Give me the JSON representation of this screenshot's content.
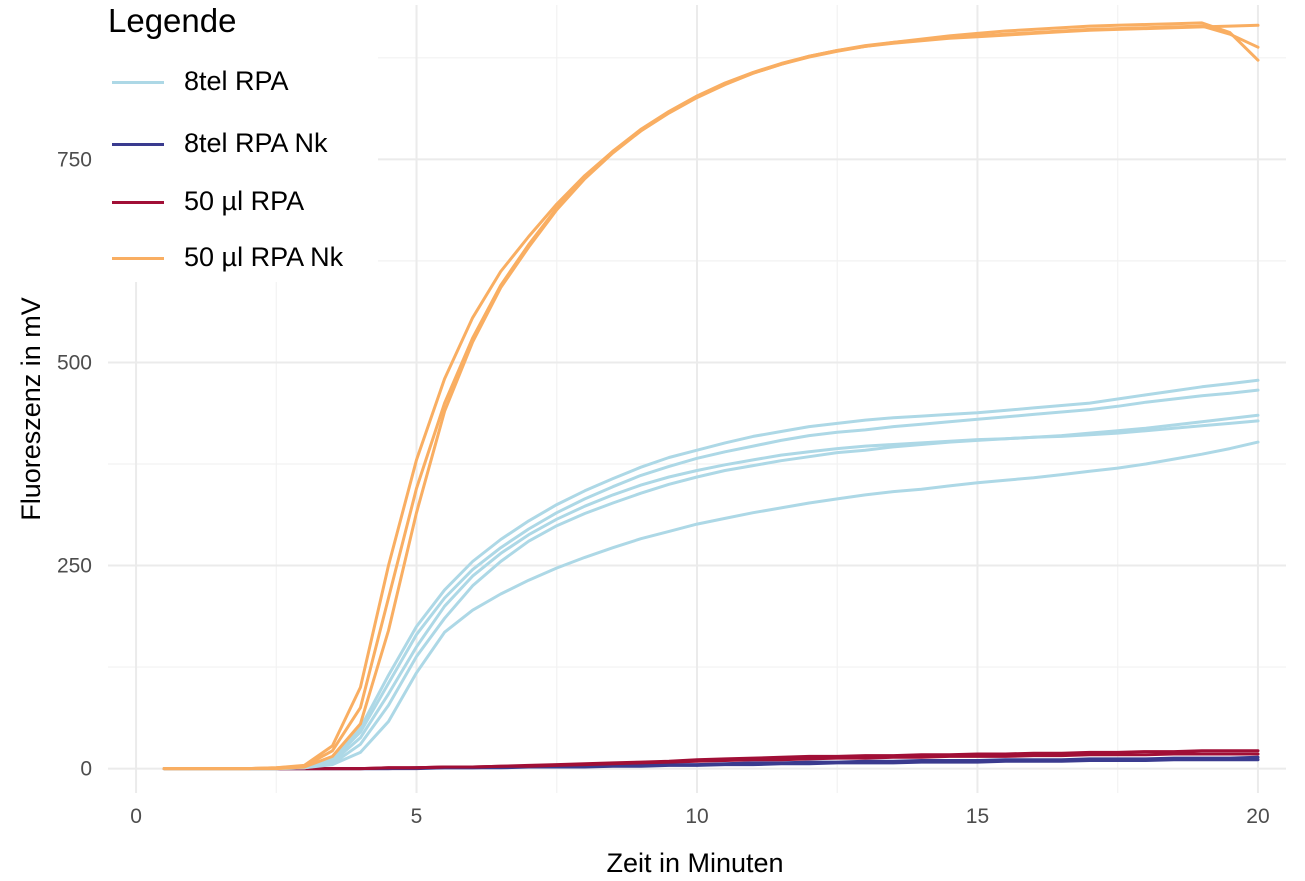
{
  "chart_data": {
    "type": "line",
    "xlabel": "Zeit in Minuten",
    "ylabel": "Fluoreszenz in mV",
    "xlim": [
      -0.5,
      20.5
    ],
    "ylim": [
      -30,
      940
    ],
    "x_ticks": [
      0,
      5,
      10,
      15,
      20
    ],
    "y_ticks": [
      0,
      250,
      500,
      750
    ],
    "x_tick_labels": [
      "0",
      "5",
      "10",
      "15",
      "20"
    ],
    "y_tick_labels": [
      "0",
      "250",
      "500",
      "750"
    ],
    "grid": true,
    "legend": {
      "title": "Legende",
      "position": "top-left"
    },
    "groups": [
      {
        "name": "8tel RPA",
        "color": "#add8e6"
      },
      {
        "name": "8tel RPA Nk",
        "color": "#3a3b8f"
      },
      {
        "name": "50 µl RPA",
        "color": "#a10f36"
      },
      {
        "name": "50 µl RPA Nk",
        "color": "#f9ae62"
      }
    ],
    "x": [
      0.5,
      1,
      1.5,
      2,
      2.5,
      3,
      3.5,
      4,
      4.5,
      5,
      5.5,
      6,
      6.5,
      7,
      7.5,
      8,
      8.5,
      9,
      9.5,
      10,
      10.5,
      11,
      11.5,
      12,
      12.5,
      13,
      13.5,
      14,
      14.5,
      15,
      15.5,
      16,
      16.5,
      17,
      17.5,
      18,
      18.5,
      19,
      19.5,
      20
    ],
    "series": [
      {
        "group": "50 µl RPA Nk",
        "values": [
          0,
          0,
          0,
          0,
          1,
          4,
          28,
          100,
          250,
          380,
          480,
          555,
          612,
          655,
          695,
          730,
          760,
          785,
          807,
          826,
          842,
          856,
          867,
          876,
          883,
          889,
          893,
          896,
          899,
          901,
          903,
          905,
          907,
          909,
          910,
          911,
          912,
          913,
          914,
          915
        ]
      },
      {
        "group": "50 µl RPA Nk",
        "values": [
          0,
          0,
          0,
          0,
          1,
          3,
          22,
          75,
          210,
          345,
          450,
          530,
          595,
          645,
          690,
          728,
          760,
          787,
          809,
          828,
          844,
          857,
          868,
          877,
          884,
          890,
          894,
          897,
          900,
          902,
          904,
          906,
          908,
          910,
          911,
          912,
          913,
          914,
          904,
          888
        ]
      },
      {
        "group": "50 µl RPA Nk",
        "values": [
          0,
          0,
          0,
          0,
          0,
          2,
          15,
          55,
          170,
          315,
          440,
          525,
          592,
          642,
          688,
          726,
          758,
          785,
          808,
          827,
          843,
          856,
          867,
          877,
          884,
          889,
          894,
          898,
          902,
          905,
          908,
          910,
          912,
          914,
          915,
          916,
          917,
          918,
          906,
          872
        ]
      },
      {
        "group": "8tel RPA",
        "values": [
          0,
          0,
          0,
          0,
          0,
          2,
          12,
          50,
          115,
          175,
          220,
          255,
          282,
          305,
          325,
          342,
          357,
          371,
          383,
          392,
          401,
          409,
          415,
          421,
          425,
          429,
          432,
          434,
          436,
          438,
          441,
          444,
          447,
          450,
          455,
          460,
          465,
          470,
          474,
          478
        ]
      },
      {
        "group": "8tel RPA",
        "values": [
          0,
          0,
          0,
          0,
          0,
          2,
          10,
          45,
          105,
          165,
          210,
          245,
          272,
          295,
          315,
          332,
          347,
          361,
          372,
          382,
          390,
          397,
          404,
          410,
          414,
          417,
          421,
          424,
          427,
          430,
          433,
          436,
          439,
          442,
          446,
          451,
          455,
          459,
          462,
          466
        ]
      },
      {
        "group": "8tel RPA",
        "values": [
          0,
          0,
          0,
          0,
          0,
          1,
          8,
          38,
          92,
          150,
          200,
          237,
          265,
          288,
          307,
          323,
          337,
          349,
          359,
          367,
          374,
          380,
          386,
          390,
          394,
          397,
          399,
          401,
          403,
          405,
          406,
          408,
          410,
          413,
          416,
          419,
          423,
          427,
          431,
          435
        ]
      },
      {
        "group": "8tel RPA",
        "values": [
          0,
          0,
          0,
          0,
          0,
          1,
          6,
          30,
          78,
          138,
          185,
          225,
          255,
          280,
          299,
          314,
          327,
          339,
          350,
          359,
          367,
          373,
          379,
          384,
          389,
          392,
          396,
          399,
          402,
          404,
          406,
          408,
          409,
          411,
          413,
          416,
          419,
          422,
          425,
          428
        ]
      },
      {
        "group": "8tel RPA",
        "values": [
          0,
          0,
          0,
          0,
          0,
          1,
          5,
          20,
          58,
          118,
          168,
          195,
          215,
          232,
          247,
          260,
          272,
          283,
          292,
          301,
          308,
          315,
          321,
          327,
          332,
          337,
          341,
          344,
          348,
          352,
          355,
          358,
          362,
          366,
          370,
          375,
          381,
          387,
          394,
          402
        ]
      },
      {
        "group": "50 µl RPA",
        "values": [
          0,
          0,
          0,
          0,
          0,
          0,
          0,
          0,
          1,
          1,
          2,
          2,
          3,
          4,
          5,
          6,
          7,
          8,
          9,
          11,
          12,
          13,
          14,
          15,
          15,
          16,
          16,
          17,
          17,
          18,
          18,
          19,
          19,
          20,
          20,
          21,
          21,
          22,
          22,
          22
        ]
      },
      {
        "group": "50 µl RPA",
        "values": [
          0,
          0,
          0,
          0,
          0,
          0,
          0,
          0,
          1,
          1,
          2,
          2,
          3,
          3,
          4,
          5,
          6,
          7,
          8,
          9,
          10,
          11,
          11,
          12,
          13,
          13,
          14,
          14,
          15,
          15,
          15,
          16,
          16,
          17,
          17,
          17,
          18,
          18,
          18,
          18
        ]
      },
      {
        "group": "8tel RPA Nk",
        "values": [
          0,
          0,
          0,
          0,
          0,
          0,
          0,
          0,
          0,
          1,
          1,
          1,
          2,
          2,
          3,
          3,
          4,
          4,
          5,
          5,
          6,
          7,
          7,
          8,
          8,
          9,
          9,
          10,
          10,
          10,
          11,
          11,
          11,
          12,
          12,
          12,
          13,
          13,
          13,
          14
        ]
      },
      {
        "group": "8tel RPA Nk",
        "values": [
          0,
          0,
          0,
          0,
          0,
          0,
          0,
          0,
          0,
          0,
          1,
          1,
          1,
          2,
          2,
          2,
          3,
          3,
          4,
          4,
          5,
          5,
          6,
          6,
          7,
          7,
          7,
          8,
          8,
          8,
          9,
          9,
          9,
          10,
          10,
          10,
          11,
          11,
          11,
          11
        ]
      }
    ]
  }
}
